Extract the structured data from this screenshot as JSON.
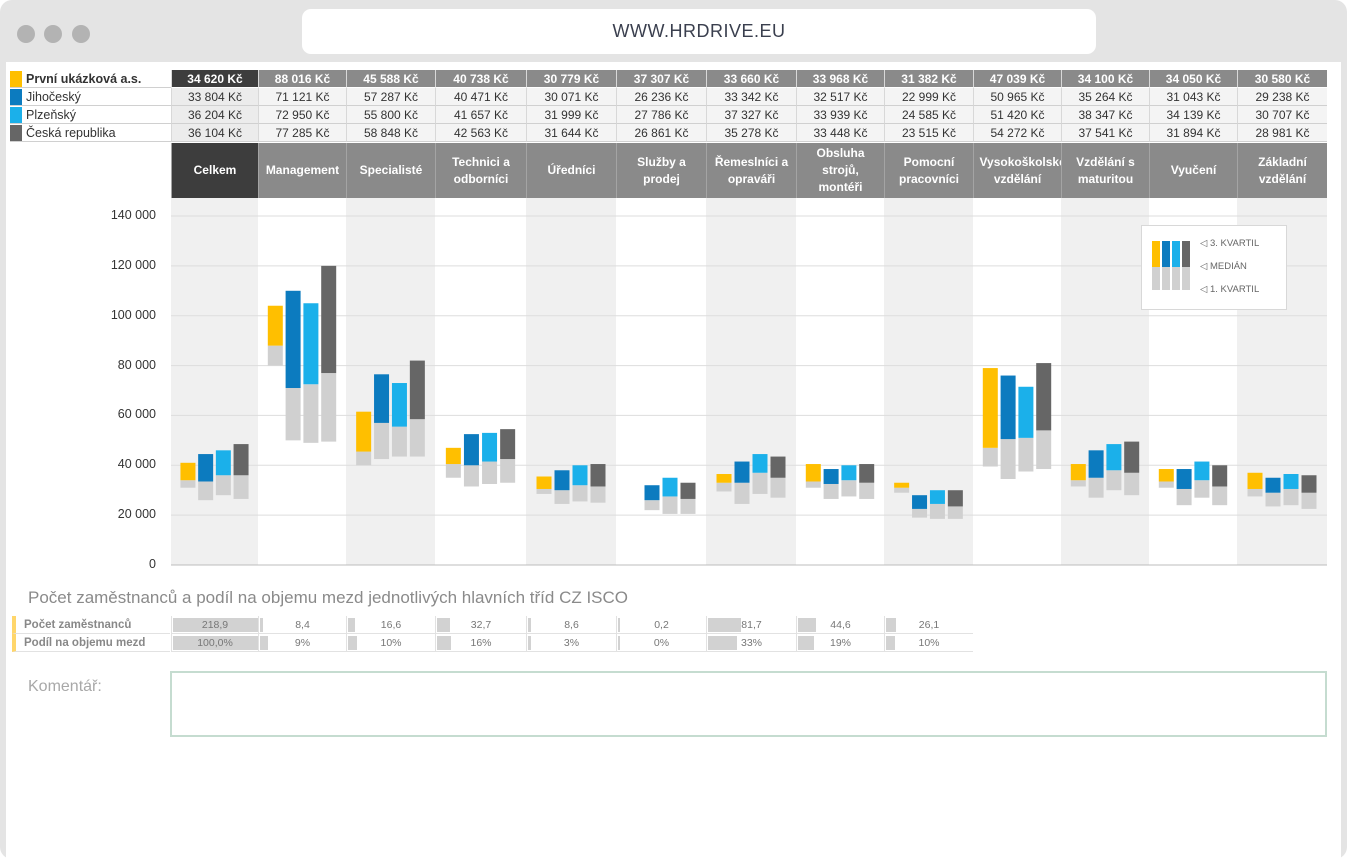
{
  "browser": {
    "url": "WWW.HRDRIVE.EU"
  },
  "colors": {
    "company": "#ffbf00",
    "jihocesky": "#0c7bbf",
    "plzensky": "#1bb0ea",
    "cr": "#666666",
    "lower_part": "#d0d0d0",
    "header_bg": "#8a8a8a",
    "header_selected_bg": "#3d3d3d",
    "stripe": "#f0f0f0"
  },
  "table": {
    "columns": [
      "Celkem",
      "Management",
      "Specialisté",
      "Technici a odborníci",
      "Úředníci",
      "Služby a prodej",
      "Řemeslníci a opraváři",
      "Obsluha strojů, montéři",
      "Pomocní pracovníci",
      "Vysokoškolské vzdělání",
      "Vzdělání s maturitou",
      "Vyučení",
      "Základní vzdělání"
    ],
    "rows": [
      {
        "label": "První ukázková a.s.",
        "values": [
          "34 620 Kč",
          "88 016 Kč",
          "45 588 Kč",
          "40 738 Kč",
          "30 779 Kč",
          "37 307 Kč",
          "33 660 Kč",
          "33 968 Kč",
          "31 382 Kč",
          "47 039 Kč",
          "34 100 Kč",
          "34 050 Kč",
          "30 580 Kč"
        ]
      },
      {
        "label": "Jihočeský",
        "values": [
          "33 804 Kč",
          "71 121 Kč",
          "57 287 Kč",
          "40 471 Kč",
          "30 071 Kč",
          "26 236 Kč",
          "33 342 Kč",
          "32 517 Kč",
          "22 999 Kč",
          "50 965 Kč",
          "35 264 Kč",
          "31 043 Kč",
          "29 238 Kč"
        ]
      },
      {
        "label": "Plzeňský",
        "values": [
          "36 204 Kč",
          "72 950 Kč",
          "55 800 Kč",
          "41 657 Kč",
          "31 999 Kč",
          "27 786 Kč",
          "37 327 Kč",
          "33 939 Kč",
          "24 585 Kč",
          "51 420 Kč",
          "38 347 Kč",
          "34 139 Kč",
          "30 707 Kč"
        ]
      },
      {
        "label": "Česká republika",
        "values": [
          "36 104 Kč",
          "77 285 Kč",
          "58 848 Kč",
          "42 563 Kč",
          "31 644 Kč",
          "26 861 Kč",
          "35 278 Kč",
          "33 448 Kč",
          "23 515 Kč",
          "54 272 Kč",
          "37 541 Kč",
          "31 894 Kč",
          "28 981 Kč"
        ]
      }
    ]
  },
  "chart_data": {
    "type": "bar",
    "subtype": "floating-quartile-bars",
    "categories": [
      "Celkem",
      "Management",
      "Specialisté",
      "Technici a odborníci",
      "Úředníci",
      "Služby a prodej",
      "Řemeslníci a opraváři",
      "Obsluha strojů, montéři",
      "Pomocní pracovníci",
      "Vysokoškolské vzdělání",
      "Vzdělání s maturitou",
      "Vyučení",
      "Základní vzdělání"
    ],
    "ylim": [
      0,
      140000
    ],
    "yticks": [
      "0",
      "20 000",
      "40 000",
      "60 000",
      "80 000",
      "100 000",
      "120 000",
      "140 000"
    ],
    "grid": true,
    "legend_position": "top-right",
    "series": [
      {
        "name": "První ukázková a.s.",
        "color": "#ffbf00",
        "q1": [
          31000,
          80000,
          40000,
          35000,
          28500,
          0,
          29500,
          31000,
          29000,
          39500,
          31500,
          31000,
          27500
        ],
        "median": [
          34000,
          88000,
          45500,
          40500,
          30500,
          0,
          33000,
          33500,
          31000,
          47000,
          34000,
          33500,
          30500
        ],
        "q3": [
          41000,
          104000,
          61500,
          47000,
          35500,
          0,
          36500,
          40500,
          33000,
          79000,
          40500,
          38500,
          37000
        ]
      },
      {
        "name": "Jihočeský",
        "color": "#0c7bbf",
        "q1": [
          26000,
          50000,
          42500,
          31500,
          24500,
          22000,
          24500,
          26500,
          19000,
          34500,
          27000,
          24000,
          23500
        ],
        "median": [
          33500,
          71000,
          57000,
          40000,
          30000,
          26000,
          33000,
          32500,
          22500,
          50500,
          35000,
          30500,
          29000
        ],
        "q3": [
          44500,
          110000,
          76500,
          52500,
          38000,
          32000,
          41500,
          38500,
          28000,
          76000,
          46000,
          38500,
          35000
        ]
      },
      {
        "name": "Plzeňský",
        "color": "#1bb0ea",
        "q1": [
          28000,
          49000,
          43500,
          32500,
          25500,
          20500,
          28500,
          27500,
          18500,
          37500,
          30000,
          27000,
          24000
        ],
        "median": [
          36000,
          72500,
          55500,
          41500,
          32000,
          27500,
          37000,
          34000,
          24500,
          51000,
          38000,
          34000,
          30500
        ],
        "q3": [
          46000,
          105000,
          73000,
          53000,
          40000,
          35000,
          44500,
          40000,
          30000,
          71500,
          48500,
          41500,
          36500
        ]
      },
      {
        "name": "Česká republika",
        "color": "#666666",
        "q1": [
          26500,
          49500,
          43500,
          33000,
          25000,
          20500,
          27000,
          26500,
          18500,
          38500,
          28000,
          24000,
          22500
        ],
        "median": [
          36000,
          77000,
          58500,
          42500,
          31500,
          26500,
          35000,
          33000,
          23500,
          54000,
          37000,
          31500,
          29000
        ],
        "q3": [
          48500,
          120000,
          82000,
          54500,
          40500,
          33000,
          43500,
          40500,
          30000,
          81000,
          49500,
          40000,
          36000
        ]
      }
    ],
    "legend_labels": [
      "3. KVARTIL",
      "MEDIÁN",
      "1. KVARTIL"
    ]
  },
  "employees": {
    "title": "Počet zaměstnanců a podíl na objemu mezd jednotlivých hlavních tříd CZ ISCO",
    "row1_label": "Počet zaměstnanců",
    "row2_label": "Podíl na objemu mezd",
    "counts": [
      "218,9",
      "8,4",
      "16,6",
      "32,7",
      "8,6",
      "0,2",
      "81,7",
      "44,6",
      "26,1"
    ],
    "counts_fill_pct": [
      100,
      3.8,
      7.6,
      14.9,
      3.9,
      0.1,
      37.3,
      20.4,
      11.9
    ],
    "shares": [
      "100,0%",
      "9%",
      "10%",
      "16%",
      "3%",
      "0%",
      "33%",
      "19%",
      "10%"
    ],
    "shares_fill_pct": [
      100,
      9,
      10,
      16,
      3,
      0,
      33,
      19,
      10
    ]
  },
  "comment": {
    "label": "Komentář:",
    "value": ""
  }
}
